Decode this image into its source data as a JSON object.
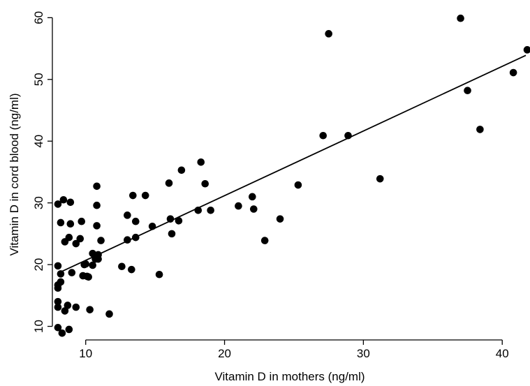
{
  "chart_data": {
    "type": "scatter",
    "title": "",
    "xlabel": "Vitamin D in mothers (ng/ml)",
    "ylabel": "Vitamin D in cord blood (ng/ml)",
    "xlim": [
      7.6,
      42
    ],
    "ylim": [
      7.8,
      62.3
    ],
    "x_ticks": [
      10,
      20,
      30,
      40
    ],
    "y_ticks": [
      10,
      20,
      30,
      40,
      50,
      60
    ],
    "x_tick_labels": [
      "10",
      "20",
      "30",
      "40"
    ],
    "y_tick_labels": [
      "10",
      "20",
      "30",
      "40",
      "50",
      "60"
    ],
    "grid": false,
    "legend": "none",
    "colors": {
      "points": "#000000",
      "line": "#000000",
      "axes": "#000000"
    },
    "fit_line": {
      "x": [
        8,
        41.7
      ],
      "y": [
        18.6,
        53.9
      ]
    },
    "points": [
      {
        "x": 8.0,
        "y": 29.8
      },
      {
        "x": 8.4,
        "y": 30.5
      },
      {
        "x": 8.9,
        "y": 30.1
      },
      {
        "x": 8.2,
        "y": 26.8
      },
      {
        "x": 8.9,
        "y": 26.6
      },
      {
        "x": 8.5,
        "y": 23.7
      },
      {
        "x": 8.8,
        "y": 24.4
      },
      {
        "x": 9.3,
        "y": 23.4
      },
      {
        "x": 9.6,
        "y": 24.2
      },
      {
        "x": 9.7,
        "y": 27.0
      },
      {
        "x": 8.0,
        "y": 19.8
      },
      {
        "x": 8.2,
        "y": 18.5
      },
      {
        "x": 8.2,
        "y": 17.2
      },
      {
        "x": 8.0,
        "y": 16.7
      },
      {
        "x": 8.0,
        "y": 16.2
      },
      {
        "x": 9.0,
        "y": 18.7
      },
      {
        "x": 9.8,
        "y": 18.2
      },
      {
        "x": 9.9,
        "y": 20.0
      },
      {
        "x": 10.0,
        "y": 20.1
      },
      {
        "x": 10.1,
        "y": 18.1
      },
      {
        "x": 10.2,
        "y": 18.0
      },
      {
        "x": 10.5,
        "y": 21.8
      },
      {
        "x": 10.5,
        "y": 19.9
      },
      {
        "x": 10.7,
        "y": 20.9
      },
      {
        "x": 10.9,
        "y": 21.6
      },
      {
        "x": 10.9,
        "y": 20.9
      },
      {
        "x": 11.1,
        "y": 23.9
      },
      {
        "x": 10.8,
        "y": 26.3
      },
      {
        "x": 10.8,
        "y": 29.6
      },
      {
        "x": 10.8,
        "y": 32.7
      },
      {
        "x": 8.0,
        "y": 14.0
      },
      {
        "x": 8.0,
        "y": 13.1
      },
      {
        "x": 8.5,
        "y": 12.5
      },
      {
        "x": 8.7,
        "y": 13.4
      },
      {
        "x": 9.3,
        "y": 13.1
      },
      {
        "x": 10.3,
        "y": 12.7
      },
      {
        "x": 11.7,
        "y": 12.0
      },
      {
        "x": 8.0,
        "y": 9.8
      },
      {
        "x": 8.3,
        "y": 8.9
      },
      {
        "x": 8.8,
        "y": 9.5
      },
      {
        "x": 12.6,
        "y": 19.7
      },
      {
        "x": 13.3,
        "y": 19.2
      },
      {
        "x": 13.0,
        "y": 24.0
      },
      {
        "x": 13.6,
        "y": 24.4
      },
      {
        "x": 13.0,
        "y": 28.0
      },
      {
        "x": 13.6,
        "y": 27.0
      },
      {
        "x": 13.4,
        "y": 31.2
      },
      {
        "x": 14.3,
        "y": 31.2
      },
      {
        "x": 14.8,
        "y": 26.2
      },
      {
        "x": 15.3,
        "y": 18.4
      },
      {
        "x": 16.0,
        "y": 33.2
      },
      {
        "x": 16.1,
        "y": 27.4
      },
      {
        "x": 16.2,
        "y": 25.0
      },
      {
        "x": 16.7,
        "y": 27.1
      },
      {
        "x": 16.9,
        "y": 35.3
      },
      {
        "x": 18.1,
        "y": 28.8
      },
      {
        "x": 18.3,
        "y": 36.6
      },
      {
        "x": 18.6,
        "y": 33.1
      },
      {
        "x": 19.0,
        "y": 28.8
      },
      {
        "x": 21.0,
        "y": 29.5
      },
      {
        "x": 22.0,
        "y": 31.0
      },
      {
        "x": 22.1,
        "y": 29.0
      },
      {
        "x": 22.9,
        "y": 23.9
      },
      {
        "x": 24.0,
        "y": 27.4
      },
      {
        "x": 25.3,
        "y": 32.9
      },
      {
        "x": 27.1,
        "y": 40.9
      },
      {
        "x": 28.9,
        "y": 40.9
      },
      {
        "x": 27.5,
        "y": 57.4
      },
      {
        "x": 31.2,
        "y": 33.9
      },
      {
        "x": 37.0,
        "y": 59.9
      },
      {
        "x": 37.5,
        "y": 48.2
      },
      {
        "x": 38.4,
        "y": 41.9
      },
      {
        "x": 40.8,
        "y": 51.1
      },
      {
        "x": 41.8,
        "y": 54.8
      }
    ]
  }
}
